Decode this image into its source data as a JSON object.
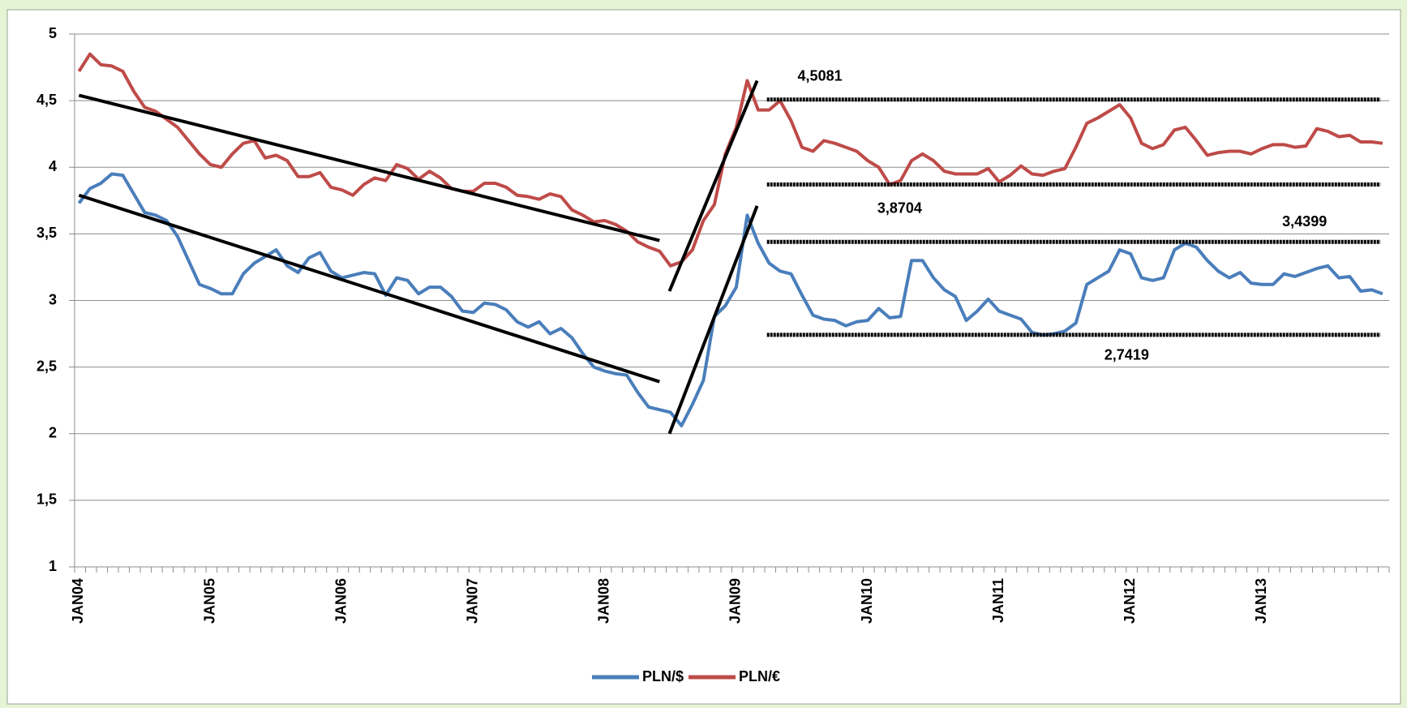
{
  "chart_data": {
    "type": "line",
    "categories": [
      "JAN04",
      null,
      null,
      null,
      null,
      null,
      null,
      null,
      null,
      null,
      null,
      null,
      "JAN05",
      null,
      null,
      null,
      null,
      null,
      null,
      null,
      null,
      null,
      null,
      null,
      "JAN06",
      null,
      null,
      null,
      null,
      null,
      null,
      null,
      null,
      null,
      null,
      null,
      "JAN07",
      null,
      null,
      null,
      null,
      null,
      null,
      null,
      null,
      null,
      null,
      null,
      "JAN08",
      null,
      null,
      null,
      null,
      null,
      null,
      null,
      null,
      null,
      null,
      null,
      "JAN09",
      null,
      null,
      null,
      null,
      null,
      null,
      null,
      null,
      null,
      null,
      null,
      "JAN10",
      null,
      null,
      null,
      null,
      null,
      null,
      null,
      null,
      null,
      null,
      null,
      "JAN11",
      null,
      null,
      null,
      null,
      null,
      null,
      null,
      null,
      null,
      null,
      null,
      "JAN12",
      null,
      null,
      null,
      null,
      null,
      null,
      null,
      null,
      null,
      null,
      null,
      "JAN13",
      null,
      null,
      null,
      null,
      null,
      null,
      null,
      null,
      null,
      null,
      null
    ],
    "series": [
      {
        "name": "PLN/$",
        "color": "#4a7ebb",
        "values": [
          3.73,
          3.84,
          3.88,
          3.95,
          3.94,
          3.8,
          3.66,
          3.64,
          3.6,
          3.48,
          3.3,
          3.12,
          3.09,
          3.05,
          3.05,
          3.2,
          3.28,
          3.33,
          3.38,
          3.26,
          3.21,
          3.32,
          3.36,
          3.22,
          3.17,
          3.19,
          3.21,
          3.2,
          3.04,
          3.17,
          3.15,
          3.05,
          3.1,
          3.1,
          3.03,
          2.92,
          2.91,
          2.98,
          2.97,
          2.93,
          2.84,
          2.8,
          2.84,
          2.75,
          2.79,
          2.72,
          2.6,
          2.5,
          2.47,
          2.45,
          2.44,
          2.31,
          2.2,
          2.18,
          2.16,
          2.06,
          2.22,
          2.4,
          2.88,
          2.96,
          3.1,
          3.64,
          3.43,
          3.28,
          3.22,
          3.2,
          3.04,
          2.89,
          2.86,
          2.85,
          2.81,
          2.84,
          2.85,
          2.94,
          2.87,
          2.88,
          3.3,
          3.3,
          3.17,
          3.08,
          3.03,
          2.85,
          2.92,
          3.01,
          2.92,
          2.89,
          2.86,
          2.76,
          2.74,
          2.75,
          2.77,
          2.83,
          3.12,
          3.17,
          3.22,
          3.38,
          3.35,
          3.17,
          3.15,
          3.17,
          3.38,
          3.43,
          3.4,
          3.3,
          3.22,
          3.17,
          3.21,
          3.13,
          3.12,
          3.12,
          3.2,
          3.18,
          3.21,
          3.24,
          3.26,
          3.17,
          3.18,
          3.07,
          3.08,
          3.05
        ]
      },
      {
        "name": "PLN/€",
        "color": "#be4b48",
        "values": [
          4.72,
          4.85,
          4.77,
          4.76,
          4.72,
          4.57,
          4.45,
          4.42,
          4.36,
          4.3,
          4.2,
          4.1,
          4.02,
          4.0,
          4.1,
          4.18,
          4.2,
          4.07,
          4.09,
          4.05,
          3.93,
          3.93,
          3.96,
          3.85,
          3.83,
          3.79,
          3.87,
          3.92,
          3.9,
          4.02,
          3.99,
          3.91,
          3.97,
          3.92,
          3.84,
          3.82,
          3.82,
          3.88,
          3.88,
          3.85,
          3.79,
          3.78,
          3.76,
          3.8,
          3.78,
          3.68,
          3.64,
          3.59,
          3.6,
          3.57,
          3.52,
          3.44,
          3.4,
          3.37,
          3.26,
          3.29,
          3.38,
          3.6,
          3.72,
          4.1,
          4.3,
          4.65,
          4.43,
          4.43,
          4.5,
          4.35,
          4.15,
          4.12,
          4.2,
          4.18,
          4.15,
          4.12,
          4.05,
          4.0,
          3.87,
          3.9,
          4.05,
          4.1,
          4.05,
          3.97,
          3.95,
          3.95,
          3.95,
          3.99,
          3.89,
          3.94,
          4.01,
          3.95,
          3.94,
          3.97,
          3.99,
          4.15,
          4.33,
          4.37,
          4.42,
          4.47,
          4.37,
          4.18,
          4.14,
          4.17,
          4.28,
          4.3,
          4.2,
          4.09,
          4.11,
          4.12,
          4.12,
          4.1,
          4.14,
          4.17,
          4.17,
          4.15,
          4.16,
          4.29,
          4.27,
          4.23,
          4.24,
          4.19,
          4.19,
          4.18
        ]
      }
    ],
    "ylim": [
      1,
      5
    ],
    "yticks": [
      1,
      {
        "value": 1.5,
        "label": "1,5"
      },
      2,
      {
        "value": 2.5,
        "label": "2,5"
      },
      3,
      {
        "value": 3.5,
        "label": "3,5"
      },
      4,
      {
        "value": 4.5,
        "label": "4,5"
      },
      5
    ],
    "grid": true,
    "legend": "bottom",
    "trendlines": [
      {
        "x": [
          0,
          53
        ],
        "y": [
          4.54,
          3.45
        ]
      },
      {
        "x": [
          0,
          53
        ],
        "y": [
          3.79,
          2.39
        ]
      },
      {
        "x": [
          53.9,
          61.9
        ],
        "y": [
          3.07,
          4.65
        ]
      },
      {
        "x": [
          53.9,
          61.9
        ],
        "y": [
          2.0,
          3.71
        ]
      }
    ],
    "levels": [
      {
        "value": 4.5081,
        "label": "4,5081",
        "x": [
          62.8,
          118.8
        ]
      },
      {
        "value": 3.8704,
        "label": "3,8704",
        "x": [
          62.8,
          118.8
        ]
      },
      {
        "value": 3.4399,
        "label": "3,4399",
        "x": [
          62.8,
          118.8
        ]
      },
      {
        "value": 2.7419,
        "label": "2,7419",
        "x": [
          62.8,
          118.8
        ]
      }
    ]
  }
}
